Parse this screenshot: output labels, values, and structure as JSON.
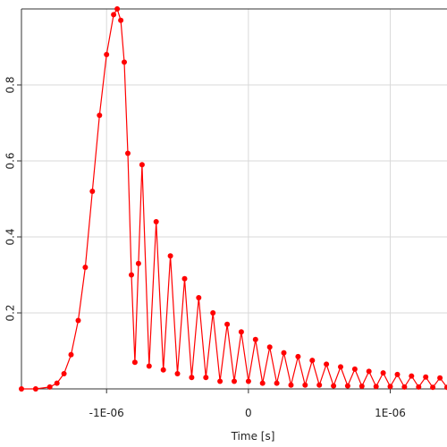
{
  "chart_data": {
    "type": "line",
    "xlabel": "Time [s]",
    "ylabel": "",
    "x_range": [
      -1.6e-06,
      1.4e-06
    ],
    "ylim": [
      0,
      1
    ],
    "x_ticks": [
      {
        "value": -1e-06,
        "label": "-1E-06"
      },
      {
        "value": 0,
        "label": "0"
      },
      {
        "value": 1e-06,
        "label": "1E-06"
      }
    ],
    "y_ticks": [
      {
        "value": 0.2,
        "label": "0.2"
      },
      {
        "value": 0.4,
        "label": "0.4"
      },
      {
        "value": 0.6,
        "label": "0.6"
      },
      {
        "value": 0.8,
        "label": "0.8"
      }
    ],
    "grid": true,
    "series_color": "#ff0000",
    "series": [
      {
        "x": [
          -1.6e-06,
          -1.5e-06,
          -1.4e-06,
          -1.35e-06,
          -1.3e-06,
          -1.25e-06,
          -1.2e-06,
          -1.15e-06,
          -1.1e-06,
          -1.05e-06,
          -1e-06,
          -9.5e-07,
          -9.25e-07,
          -9e-07,
          -8.75e-07,
          -8.5e-07,
          -8.25e-07,
          -8e-07,
          -7.75e-07,
          -7.5e-07,
          -7e-07,
          -6.5e-07,
          -6e-07,
          -5.5e-07,
          -5e-07,
          -4.5e-07,
          -4e-07,
          -3.5e-07,
          -3e-07,
          -2.5e-07,
          -2e-07,
          -1.5e-07,
          -1e-07,
          -5e-08,
          0,
          5e-08,
          1e-07,
          1.5e-07,
          2e-07,
          2.5e-07,
          3e-07,
          3.5e-07,
          4e-07,
          4.5e-07,
          5e-07,
          5.5e-07,
          6e-07,
          6.5e-07,
          7e-07,
          7.5e-07,
          8e-07,
          8.5e-07,
          9e-07,
          9.5e-07,
          1e-06,
          1.05e-06,
          1.1e-06,
          1.15e-06,
          1.2e-06,
          1.25e-06,
          1.3e-06,
          1.35e-06,
          1.4e-06
        ],
        "y": [
          0.0,
          0.0,
          0.005,
          0.015,
          0.04,
          0.09,
          0.18,
          0.32,
          0.52,
          0.72,
          0.88,
          0.985,
          1.0,
          0.97,
          0.86,
          0.62,
          0.3,
          0.07,
          0.33,
          0.59,
          0.06,
          0.44,
          0.05,
          0.35,
          0.04,
          0.29,
          0.03,
          0.24,
          0.03,
          0.2,
          0.02,
          0.17,
          0.02,
          0.15,
          0.02,
          0.13,
          0.015,
          0.11,
          0.015,
          0.095,
          0.01,
          0.085,
          0.01,
          0.075,
          0.01,
          0.065,
          0.008,
          0.058,
          0.008,
          0.052,
          0.007,
          0.046,
          0.006,
          0.042,
          0.006,
          0.038,
          0.005,
          0.034,
          0.005,
          0.031,
          0.004,
          0.029,
          0.004
        ]
      }
    ]
  }
}
